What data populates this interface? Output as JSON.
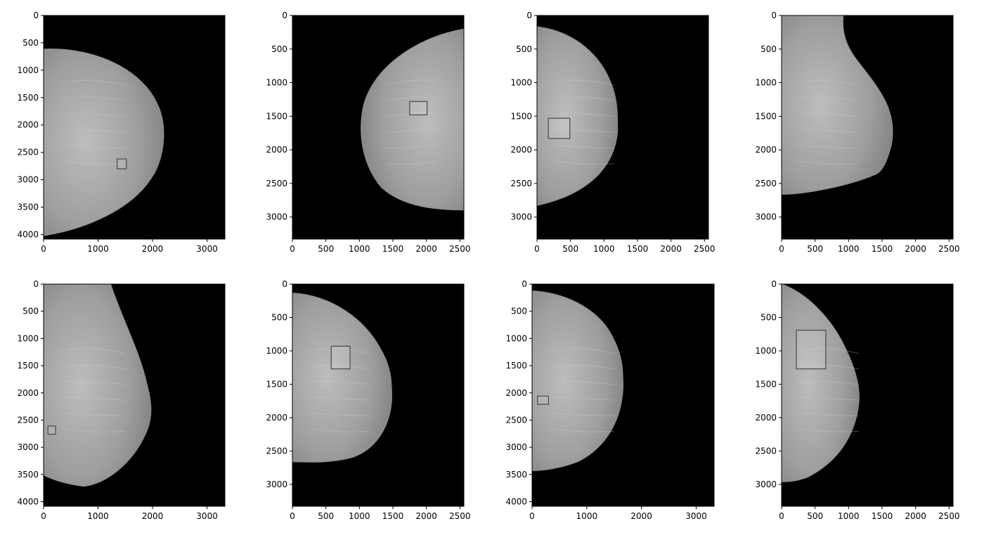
{
  "figure": {
    "background": "#ffffff",
    "image_background": "#000000",
    "tissue_color": "#a0a0a0",
    "box_color": "#505050"
  },
  "panels": [
    {
      "id": "p1",
      "image": {
        "width": 3328,
        "height": 4084
      },
      "xticks": [
        "0",
        "1000",
        "2000",
        "3000"
      ],
      "yticks": [
        "0",
        "500",
        "1000",
        "1500",
        "2000",
        "2500",
        "3000",
        "3500",
        "4000"
      ],
      "side": "left",
      "annotation_box": {
        "x0": 1350,
        "y0": 2620,
        "x1": 1520,
        "y1": 2800
      }
    },
    {
      "id": "p2",
      "image": {
        "width": 2560,
        "height": 3328
      },
      "xticks": [
        "0",
        "500",
        "1000",
        "1500",
        "2000",
        "2500"
      ],
      "yticks": [
        "0",
        "500",
        "1000",
        "1500",
        "2000",
        "2500",
        "3000"
      ],
      "side": "right",
      "annotation_box": {
        "x0": 1750,
        "y0": 1280,
        "x1": 2010,
        "y1": 1480
      }
    },
    {
      "id": "p3",
      "image": {
        "width": 2560,
        "height": 3328
      },
      "xticks": [
        "0",
        "500",
        "1000",
        "1500",
        "2000",
        "2500"
      ],
      "yticks": [
        "0",
        "500",
        "1000",
        "1500",
        "2000",
        "2500",
        "3000"
      ],
      "side": "left",
      "annotation_box": {
        "x0": 170,
        "y0": 1530,
        "x1": 490,
        "y1": 1830
      }
    },
    {
      "id": "p4",
      "image": {
        "width": 2560,
        "height": 3328
      },
      "xticks": [
        "0",
        "500",
        "1000",
        "1500",
        "2000",
        "2500"
      ],
      "yticks": [
        "0",
        "500",
        "1000",
        "1500",
        "2000",
        "2500",
        "3000"
      ],
      "side": "left",
      "annotation_box": null
    },
    {
      "id": "p5",
      "image": {
        "width": 3328,
        "height": 4084
      },
      "xticks": [
        "0",
        "1000",
        "2000",
        "3000"
      ],
      "yticks": [
        "0",
        "500",
        "1000",
        "1500",
        "2000",
        "2500",
        "3000",
        "3500",
        "4000"
      ],
      "side": "left",
      "annotation_box": {
        "x0": 80,
        "y0": 2610,
        "x1": 220,
        "y1": 2760
      }
    },
    {
      "id": "p6",
      "image": {
        "width": 2560,
        "height": 3328
      },
      "xticks": [
        "0",
        "500",
        "1000",
        "1500",
        "2000",
        "2500"
      ],
      "yticks": [
        "0",
        "500",
        "1000",
        "1500",
        "2000",
        "2500",
        "3000"
      ],
      "side": "left",
      "annotation_box": {
        "x0": 580,
        "y0": 930,
        "x1": 860,
        "y1": 1270
      }
    },
    {
      "id": "p7",
      "image": {
        "width": 3328,
        "height": 4084
      },
      "xticks": [
        "0",
        "1000",
        "2000",
        "3000"
      ],
      "yticks": [
        "0",
        "500",
        "1000",
        "1500",
        "2000",
        "2500",
        "3000",
        "3500",
        "4000"
      ],
      "side": "left",
      "annotation_box": {
        "x0": 100,
        "y0": 2060,
        "x1": 300,
        "y1": 2210
      }
    },
    {
      "id": "p8",
      "image": {
        "width": 2560,
        "height": 3328
      },
      "xticks": [
        "0",
        "500",
        "1000",
        "1500",
        "2000",
        "2500"
      ],
      "yticks": [
        "0",
        "500",
        "1000",
        "1500",
        "2000",
        "2500",
        "3000"
      ],
      "side": "left",
      "annotation_box": {
        "x0": 220,
        "y0": 690,
        "x1": 660,
        "y1": 1270
      }
    }
  ]
}
